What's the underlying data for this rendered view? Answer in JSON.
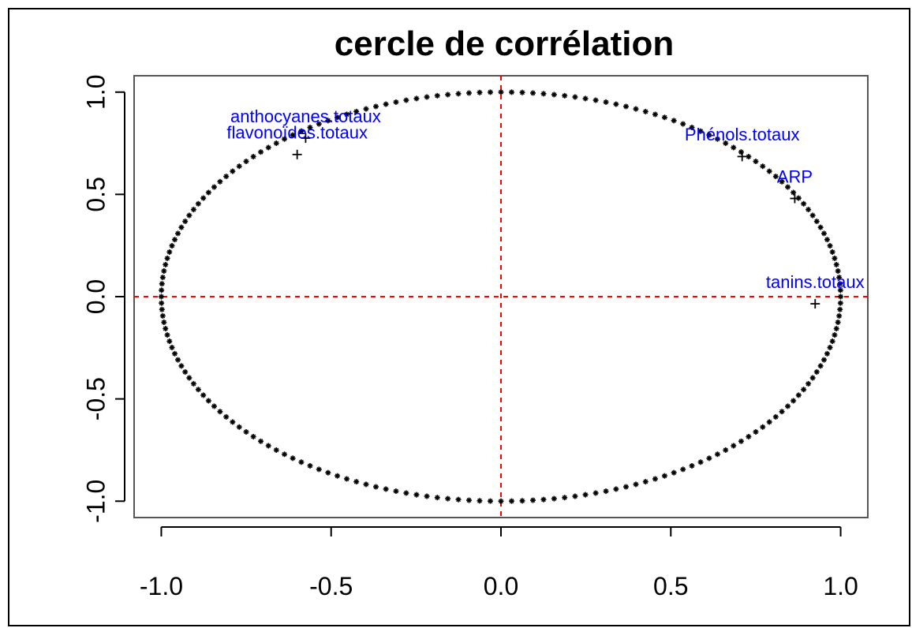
{
  "chart_data": {
    "type": "scatter",
    "title": "cercle de corrélation",
    "xlabel": "",
    "ylabel": "",
    "xlim": [
      -1.08,
      1.08
    ],
    "ylim": [
      -1.08,
      1.08
    ],
    "xticks": [
      -1.0,
      -0.5,
      0.0,
      0.5,
      1.0
    ],
    "xtick_labels": [
      "-1.0",
      "-0.5",
      "0.0",
      "0.5",
      "1.0"
    ],
    "yticks": [
      -1.0,
      -0.5,
      0.0,
      0.5,
      1.0
    ],
    "ytick_labels": [
      "-1.0",
      "-0.5",
      "0.0",
      "0.5",
      "1.0"
    ],
    "grid": false,
    "circle": {
      "radius": 1.0,
      "marker": "star",
      "color": "#000000"
    },
    "reference_lines": {
      "x": 0,
      "y": 0,
      "color": "#ff0000",
      "style": "dashed"
    },
    "label_color": "#0000ff",
    "variables": [
      {
        "name": "anthocyanes.totaux",
        "x": -0.575,
        "y": 0.775
      },
      {
        "name": "flavonoïdes.totaux",
        "x": -0.6,
        "y": 0.695
      },
      {
        "name": "Phénols.totaux",
        "x": 0.71,
        "y": 0.685
      },
      {
        "name": "ARP",
        "x": 0.865,
        "y": 0.48
      },
      {
        "name": "tanins.totaux",
        "x": 0.925,
        "y": -0.035
      }
    ]
  }
}
